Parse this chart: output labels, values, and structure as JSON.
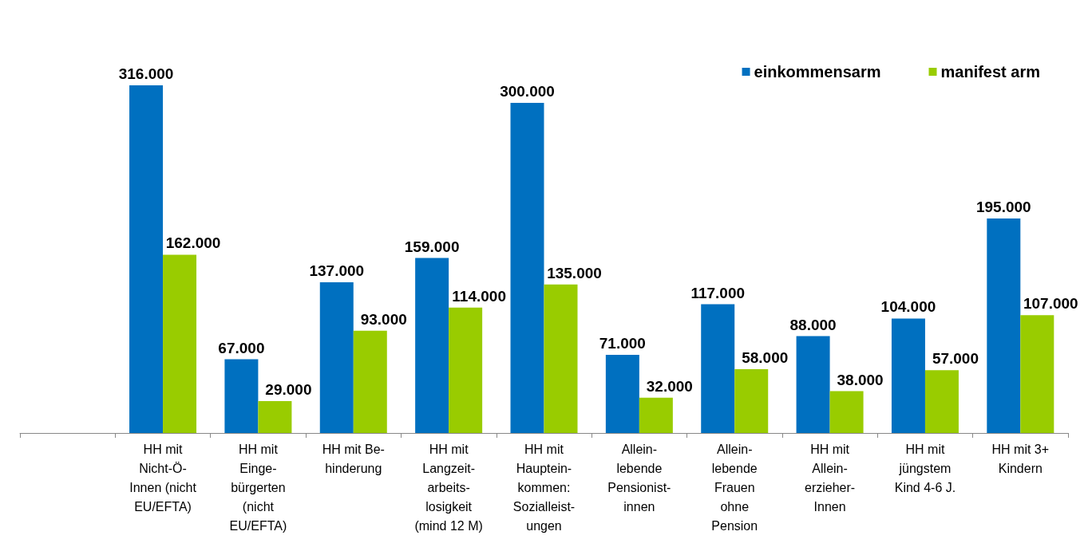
{
  "chart_data": {
    "type": "bar",
    "categories": [
      null,
      "HH mit\nNicht-Ö-\nInnen (nicht\nEU/EFTA)",
      "HH mit\nEinge-\nbürgerten\n(nicht\nEU/EFTA)",
      "HH mit Be-\nhinderung",
      "HH mit\nLangzeit-\narbeits-\nlosigkeit\n(mind 12 M)",
      "HH mit\nHauptein-\nkommen:\nSozialleist-\nungen",
      "Allein-\nlebende\nPensionist-\ninnen",
      "Allein-\nlebende\nFrauen\nohne\nPension",
      "HH mit\nAllein-\nerzieher-\nInnen",
      "HH mit\njüngstem\nKind 4-6 J.",
      "HH mit 3+\nKindern"
    ],
    "series": [
      {
        "name": "einkommensarm",
        "color": "#0070c0",
        "values": [
          null,
          316000,
          67000,
          137000,
          159000,
          300000,
          71000,
          117000,
          88000,
          104000,
          195000
        ],
        "value_labels": [
          null,
          "316.000",
          "67.000",
          "137.000",
          "159.000",
          "300.000",
          "71.000",
          "117.000",
          "88.000",
          "104.000",
          "195.000"
        ]
      },
      {
        "name": "manifest arm",
        "color": "#99cc00",
        "values": [
          null,
          162000,
          29000,
          93000,
          114000,
          135000,
          32000,
          58000,
          38000,
          57000,
          107000
        ],
        "value_labels": [
          null,
          "162.000",
          "29.000",
          "93.000",
          "114.000",
          "135.000",
          "32.000",
          "58.000",
          "38.000",
          "57.000",
          "107.000"
        ]
      }
    ],
    "legend": "top right"
  }
}
